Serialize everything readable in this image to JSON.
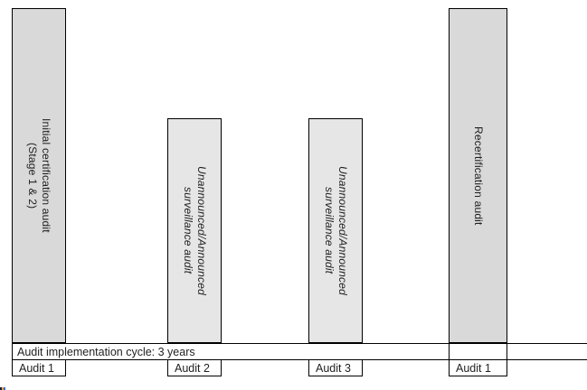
{
  "figure": {
    "background": "#ffffff",
    "border_color": "#000000",
    "text_color": "#1f1f1f"
  },
  "bars": [
    {
      "name": "initial-certification-audit",
      "label": "Initial certification audit\n(Stage 1 & 2)",
      "italic": false,
      "fill": "#d9d9d9",
      "height": "tall"
    },
    {
      "name": "surveillance-audit-1",
      "label": "Unannounced/Announced\nsurveillance audit",
      "italic": true,
      "fill": "#e7e6e6",
      "height": "short"
    },
    {
      "name": "surveillance-audit-2",
      "label": "Unannounced/Announced\nsurveillance audit",
      "italic": true,
      "fill": "#e7e6e6",
      "height": "short"
    },
    {
      "name": "recertification-audit",
      "label": "Recertification audit",
      "italic": false,
      "fill": "#d9d9d9",
      "height": "tall"
    }
  ],
  "cycle_row": {
    "label": "Audit implementation cycle: 3 years"
  },
  "audit_labels": [
    {
      "label": "Audit 1"
    },
    {
      "label": "Audit 2"
    },
    {
      "label": "Audit 3"
    },
    {
      "label": "Audit 1"
    }
  ],
  "corner_artifact": {
    "colors": [
      "#1c1c38",
      "#eda231",
      "#2f6fe0"
    ]
  }
}
